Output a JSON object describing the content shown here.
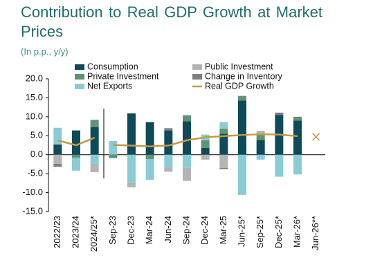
{
  "chart_data": {
    "type": "stacked-bar-line",
    "title": "Contribution to Real GDP Growth at Market Prices",
    "subtitle": "(In p.p., y/y)",
    "categories": [
      "2022/23",
      "2023/24",
      "2024/25*",
      "Sep-23",
      "Dec-23",
      "Mar-24",
      "Jun-24",
      "Sep-24",
      "Dec-24",
      "Mar-25",
      "Jun-25*",
      "Sep-25*",
      "Dec-25*",
      "Mar-26*",
      "Jun-26**"
    ],
    "series": [
      {
        "name": "Consumption",
        "color": "#0e4a5a",
        "values": [
          2.7,
          6.4,
          7.3,
          0,
          10.9,
          8.6,
          6.4,
          8.8,
          1.8,
          5.5,
          14.3,
          3.9,
          10.5,
          9.0,
          null
        ]
      },
      {
        "name": "Private Investment",
        "color": "#5e9373",
        "values": [
          0,
          -0.8,
          1.9,
          -0.9,
          0,
          -1.2,
          0,
          1.6,
          2.0,
          1.4,
          0.8,
          1.7,
          0,
          1.0,
          null
        ]
      },
      {
        "name": "Net Exports",
        "color": "#8accd6",
        "values": [
          4.4,
          -3.4,
          -2.4,
          3.6,
          -7.3,
          -5.4,
          -3.4,
          -3.4,
          1.5,
          1.7,
          -10.6,
          -1.3,
          -5.8,
          -5.2,
          null
        ]
      },
      {
        "name": "Public Investment",
        "color": "#b4b4b4",
        "values": [
          -2.4,
          0,
          -2.2,
          0,
          -1.3,
          0,
          -1.1,
          -3.5,
          -1.3,
          -3.5,
          0,
          0.7,
          0,
          0,
          null
        ]
      },
      {
        "name": "Change in Inventory",
        "color": "#7f7f7f",
        "values": [
          -0.8,
          0,
          0,
          0,
          0,
          0,
          0.6,
          0,
          0,
          -0.3,
          0.4,
          0,
          0.6,
          0,
          null
        ]
      }
    ],
    "line": {
      "name": "Real GDP Growth",
      "color": "#c49a45",
      "values": [
        3.8,
        2.5,
        4.5,
        2.6,
        2.4,
        2.2,
        2.4,
        3.8,
        4.6,
        4.9,
        5.2,
        5.4,
        5.3,
        4.9,
        4.7
      ]
    },
    "line_break_after_index": 2,
    "last_point_marker": "x",
    "ylim": [
      -15,
      20
    ],
    "yticks": [
      {
        "value": 20,
        "label": "20.0"
      },
      {
        "value": 15,
        "label": "15.0"
      },
      {
        "value": 10,
        "label": "10.0"
      },
      {
        "value": 5,
        "label": "5.0"
      },
      {
        "value": 0,
        "label": "0.0"
      },
      {
        "value": -5,
        "label": "-5.0"
      },
      {
        "value": -10,
        "label": "-10.0"
      },
      {
        "value": -15,
        "label": "-15.0"
      }
    ],
    "legend_order": [
      0,
      3,
      1,
      4,
      2,
      "line"
    ]
  }
}
